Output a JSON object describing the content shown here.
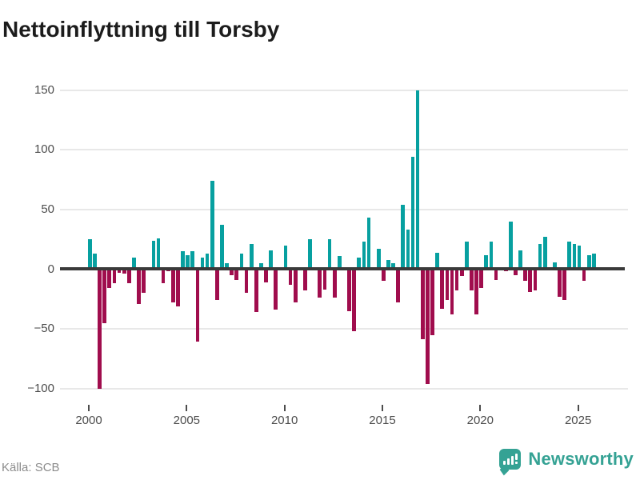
{
  "title": "Nettoinflyttning till Torsby",
  "source": "Källa: SCB",
  "brand": {
    "name": "Newsworthy",
    "color": "#35a294"
  },
  "colors": {
    "positive_bar": "#07a0a0",
    "negative_bar": "#a00d4d",
    "zero_line": "#3a3a3a",
    "gridline": "#e8e8e8",
    "axis_text": "#4d4d4d",
    "title_text": "#1c1c1c",
    "source_text": "#8c8c8c"
  },
  "chart_data": {
    "type": "bar",
    "title": "Nettoinflyttning till Torsby",
    "xlabel": "",
    "ylabel": "",
    "frequency": "quarterly",
    "start_period": "2000Q1",
    "end_period": "2025Q4",
    "x_tick_labels": [
      "2000",
      "2005",
      "2010",
      "2015",
      "2020",
      "2025"
    ],
    "y_tick_labels": [
      "150",
      "100",
      "50",
      "0",
      "−50",
      "−100"
    ],
    "y_ticks": [
      150,
      100,
      50,
      0,
      -50,
      -100
    ],
    "ylim": [
      -110,
      160
    ],
    "grid": "horizontal",
    "legend": "none",
    "series": [
      {
        "name": "Nettoinflyttning",
        "values": [
          25,
          13,
          -100,
          -45,
          -16,
          -12,
          -3,
          -4,
          -12,
          10,
          -29,
          -20,
          0,
          24,
          26,
          -12,
          -2,
          -28,
          -31,
          15,
          12,
          15,
          -61,
          10,
          13,
          74,
          -26,
          37,
          5,
          -5,
          -9,
          13,
          -20,
          21,
          -36,
          5,
          -11,
          16,
          -34,
          0,
          20,
          -13,
          -28,
          2,
          -18,
          25,
          0,
          -24,
          -17,
          25,
          -24,
          11,
          2,
          -35,
          -52,
          10,
          23,
          43,
          0,
          17,
          -10,
          8,
          5,
          -28,
          54,
          33,
          94,
          150,
          -59,
          -96,
          -55,
          14,
          -33,
          -26,
          -38,
          -18,
          -6,
          23,
          -18,
          -38,
          -16,
          12,
          23,
          -9,
          2,
          -2,
          40,
          -5,
          16,
          -10,
          -19,
          -18,
          21,
          27,
          2,
          6,
          -23,
          -26,
          23,
          21,
          20,
          -10,
          12,
          13
        ]
      }
    ]
  }
}
